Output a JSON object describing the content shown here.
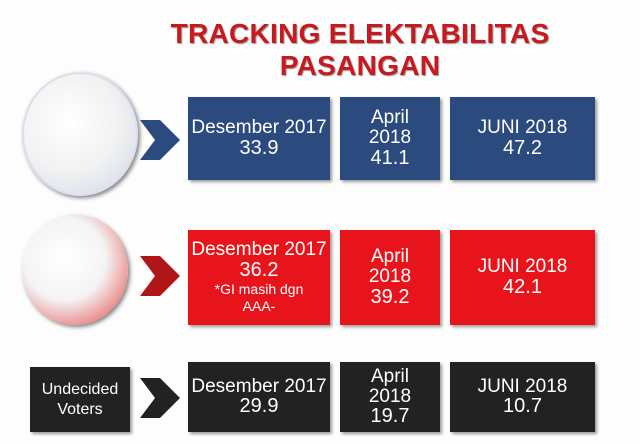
{
  "title": "TRACKING ELEKTABILITAS PASANGAN",
  "rows": [
    {
      "color": "#2b4a7d",
      "cells": [
        {
          "period": "Desember 2017",
          "value": 33.9
        },
        {
          "period": "April 2018",
          "value": 41.1
        },
        {
          "period": "JUNI 2018",
          "value": 47.2
        }
      ]
    },
    {
      "color": "#e8141b",
      "cells": [
        {
          "period": "Desember 2017",
          "value": 36.2,
          "note": "*GI masih dgn AAA-"
        },
        {
          "period": "April 2018",
          "value": 39.2
        },
        {
          "period": "JUNI 2018",
          "value": 42.1
        }
      ]
    },
    {
      "color": "#222222",
      "label": "Undecided Voters",
      "cells": [
        {
          "period": "Desember 2017",
          "value": 29.9
        },
        {
          "period": "April 2018",
          "value": 19.7
        },
        {
          "period": "JUNI 2018",
          "value": 10.7
        }
      ]
    }
  ]
}
